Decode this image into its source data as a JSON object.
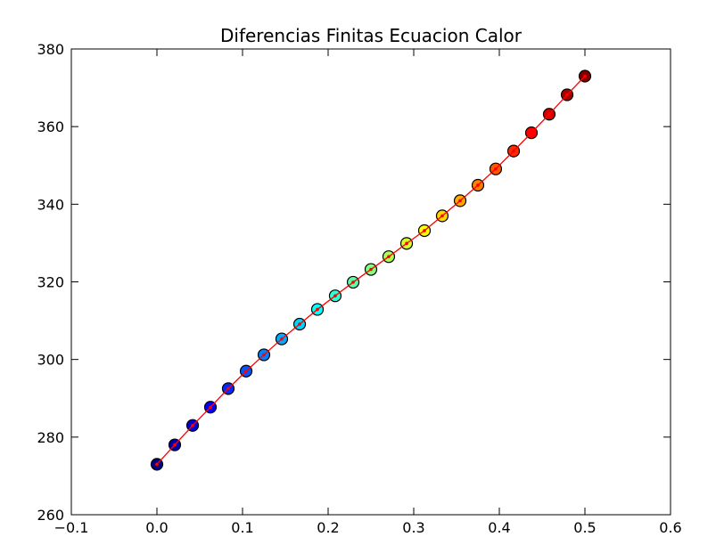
{
  "chart_data": {
    "type": "scatter",
    "title": "Diferencias Finitas Ecuacion Calor",
    "xlabel": "",
    "ylabel": "",
    "xlim": [
      -0.1,
      0.6
    ],
    "ylim": [
      260,
      380
    ],
    "xticks": [
      "−0.1",
      "0.0",
      "0.1",
      "0.2",
      "0.3",
      "0.4",
      "0.5",
      "0.6"
    ],
    "yticks": [
      "260",
      "280",
      "300",
      "320",
      "340",
      "360",
      "380"
    ],
    "grid": false,
    "legend": "none",
    "x": [
      0.0,
      0.0208,
      0.0417,
      0.0625,
      0.0833,
      0.1042,
      0.125,
      0.1458,
      0.1667,
      0.1875,
      0.2083,
      0.2292,
      0.25,
      0.2708,
      0.2917,
      0.3125,
      0.3333,
      0.3542,
      0.375,
      0.3958,
      0.4167,
      0.4375,
      0.4583,
      0.4792,
      0.5
    ],
    "y": [
      273.0,
      278.0,
      283.0,
      287.7,
      292.5,
      297.0,
      301.2,
      305.3,
      309.1,
      312.9,
      316.4,
      319.9,
      323.2,
      326.5,
      329.9,
      333.2,
      337.0,
      340.9,
      344.9,
      349.1,
      353.7,
      358.4,
      363.2,
      368.2,
      373.0
    ],
    "line_color": "#ff0000",
    "point_colormap": "jet",
    "point_colors": [
      "#00007f",
      "#0000b2",
      "#0000e8",
      "#0018ff",
      "#004cff",
      "#0080ff",
      "#00b4ff",
      "#0de0f2",
      "#29ffce",
      "#4dffaa",
      "#70ff87",
      "#94ff63",
      "#b7ff40",
      "#daff1c",
      "#fff000",
      "#ffbf00",
      "#ff8c00",
      "#ff5a00",
      "#ff2700",
      "#e80000",
      "#b20000",
      "#8c0000",
      "#7f0000",
      "#ff0000",
      "#ff3300"
    ]
  }
}
